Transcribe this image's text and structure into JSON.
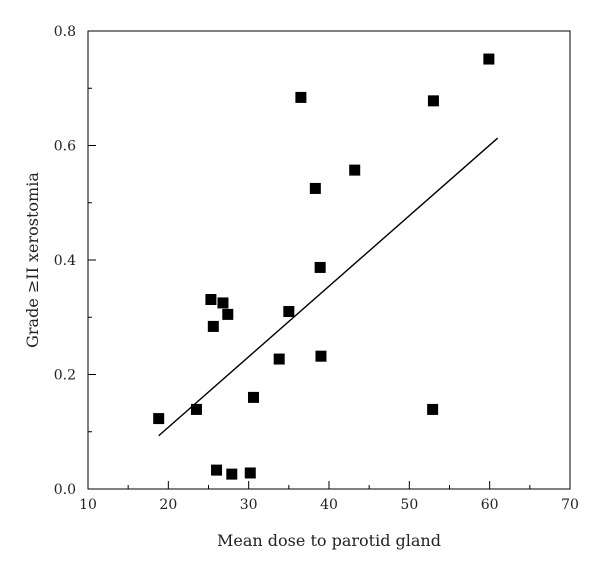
{
  "chart_data": {
    "type": "scatter",
    "xlabel": "Mean dose to parotid gland",
    "ylabel": "Grade ≥II xerostomia",
    "xlim": [
      10,
      70
    ],
    "ylim": [
      0.0,
      0.8
    ],
    "x_ticks": [
      10,
      20,
      30,
      40,
      50,
      60,
      70
    ],
    "y_ticks": [
      0.0,
      0.2,
      0.4,
      0.6,
      0.8
    ],
    "x_tick_labels": [
      "10",
      "20",
      "30",
      "40",
      "50",
      "60",
      "70"
    ],
    "y_tick_labels": [
      "0.0",
      "0.2",
      "0.4",
      "0.6",
      "0.8"
    ],
    "grid": false,
    "series": [
      {
        "type": "scatter",
        "marker": "square",
        "color": "#000000",
        "points": [
          {
            "x": 18.8,
            "y": 0.123
          },
          {
            "x": 23.5,
            "y": 0.139
          },
          {
            "x": 25.3,
            "y": 0.331
          },
          {
            "x": 25.6,
            "y": 0.284
          },
          {
            "x": 26.0,
            "y": 0.033
          },
          {
            "x": 26.8,
            "y": 0.325
          },
          {
            "x": 27.4,
            "y": 0.305
          },
          {
            "x": 27.9,
            "y": 0.026
          },
          {
            "x": 30.2,
            "y": 0.028
          },
          {
            "x": 30.6,
            "y": 0.16
          },
          {
            "x": 33.8,
            "y": 0.227
          },
          {
            "x": 35.0,
            "y": 0.31
          },
          {
            "x": 36.5,
            "y": 0.684
          },
          {
            "x": 38.3,
            "y": 0.525
          },
          {
            "x": 38.9,
            "y": 0.387
          },
          {
            "x": 39.0,
            "y": 0.232
          },
          {
            "x": 43.2,
            "y": 0.557
          },
          {
            "x": 52.9,
            "y": 0.139
          },
          {
            "x": 53.0,
            "y": 0.678
          },
          {
            "x": 59.9,
            "y": 0.751
          }
        ]
      },
      {
        "type": "line",
        "color": "#000000",
        "points": [
          {
            "x": 18.8,
            "y": 0.093
          },
          {
            "x": 61.0,
            "y": 0.613
          }
        ]
      }
    ]
  }
}
